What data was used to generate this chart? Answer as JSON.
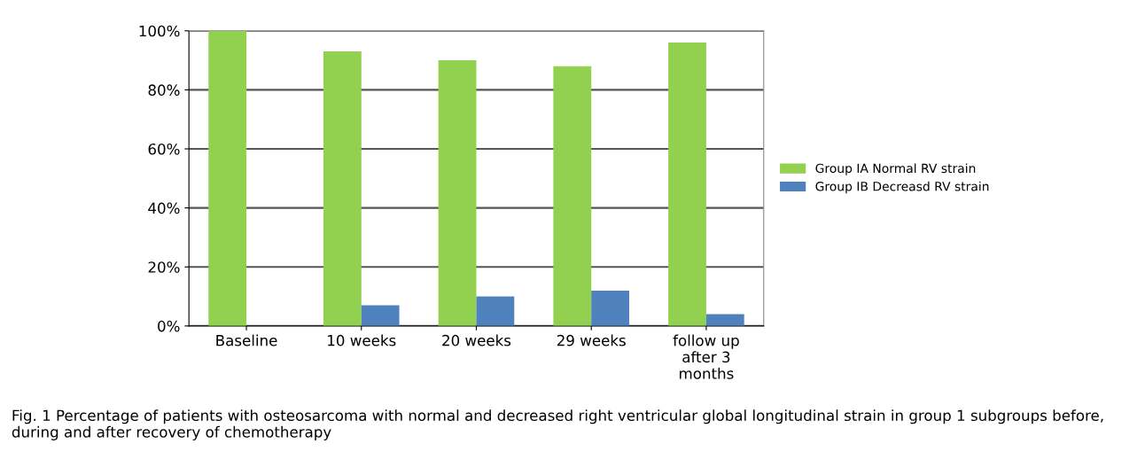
{
  "chart_data": {
    "type": "bar",
    "categories": [
      "Baseline",
      "10 weeks",
      "20 weeks",
      "29 weeks",
      "follow up\nafter 3\nmonths"
    ],
    "series": [
      {
        "name": "Group IA Normal RV strain",
        "color": "#92d050",
        "values": [
          100,
          93,
          90,
          88,
          96
        ]
      },
      {
        "name": "Group IB Decreasd RV strain",
        "color": "#4f81bd",
        "values": [
          0,
          7,
          10,
          12,
          4
        ]
      }
    ],
    "ylim": [
      0,
      100
    ],
    "yticks": [
      {
        "value": 0,
        "label": "0%"
      },
      {
        "value": 20,
        "label": "20%"
      },
      {
        "value": 40,
        "label": "40%"
      },
      {
        "value": 60,
        "label": "60%"
      },
      {
        "value": 80,
        "label": "80%"
      },
      {
        "value": 100,
        "label": "100%"
      }
    ],
    "grid": "y",
    "legend": "right",
    "annotations": [
      "Fig. 1 Percentage of patients with osteosarcoma with normal and decreased right ventricular global longitudinal strain in group 1 subgroups before, during and after recovery of chemotherapy"
    ]
  }
}
